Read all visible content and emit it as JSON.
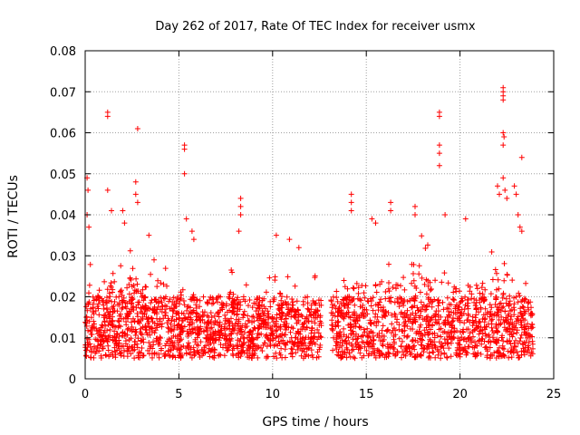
{
  "chart_data": {
    "type": "scatter",
    "title": "Day 262 of 2017, Rate Of TEC Index for receiver usmx",
    "xlabel": "GPS time / hours",
    "ylabel": "ROTI / TECUs",
    "xlim": [
      0,
      25
    ],
    "ylim": [
      0,
      0.08
    ],
    "x_ticks": [
      "0",
      "5",
      "10",
      "15",
      "20",
      "25"
    ],
    "y_ticks": [
      "0",
      "0.01",
      "0.02",
      "0.03",
      "0.04",
      "0.05",
      "0.06",
      "0.07",
      "0.08"
    ],
    "grid": true,
    "marker": "+",
    "series": [
      {
        "color": "#ff0000",
        "data_gap_hours": [
          12.6,
          13.1
        ],
        "baseline_band": [
          0.005,
          0.02
        ],
        "envelope": [
          {
            "x": 0.0,
            "max": 0.03
          },
          {
            "x": 0.5,
            "max": 0.027
          },
          {
            "x": 1.0,
            "max": 0.028
          },
          {
            "x": 1.5,
            "max": 0.03
          },
          {
            "x": 2.0,
            "max": 0.03
          },
          {
            "x": 2.5,
            "max": 0.032
          },
          {
            "x": 3.0,
            "max": 0.027
          },
          {
            "x": 3.5,
            "max": 0.033
          },
          {
            "x": 4.0,
            "max": 0.03
          },
          {
            "x": 4.5,
            "max": 0.025
          },
          {
            "x": 5.0,
            "max": 0.026
          },
          {
            "x": 5.5,
            "max": 0.03
          },
          {
            "x": 6.0,
            "max": 0.022
          },
          {
            "x": 6.5,
            "max": 0.02
          },
          {
            "x": 7.0,
            "max": 0.02
          },
          {
            "x": 7.5,
            "max": 0.025
          },
          {
            "x": 8.0,
            "max": 0.028
          },
          {
            "x": 8.5,
            "max": 0.025
          },
          {
            "x": 9.0,
            "max": 0.02
          },
          {
            "x": 9.5,
            "max": 0.026
          },
          {
            "x": 10.0,
            "max": 0.025
          },
          {
            "x": 10.5,
            "max": 0.027
          },
          {
            "x": 11.0,
            "max": 0.025
          },
          {
            "x": 11.5,
            "max": 0.02
          },
          {
            "x": 12.0,
            "max": 0.022
          },
          {
            "x": 12.5,
            "max": 0.028
          },
          {
            "x": 13.1,
            "max": 0.026
          },
          {
            "x": 13.5,
            "max": 0.03
          },
          {
            "x": 14.0,
            "max": 0.028
          },
          {
            "x": 14.5,
            "max": 0.03
          },
          {
            "x": 15.0,
            "max": 0.028
          },
          {
            "x": 15.5,
            "max": 0.031
          },
          {
            "x": 16.0,
            "max": 0.03
          },
          {
            "x": 16.5,
            "max": 0.03
          },
          {
            "x": 17.0,
            "max": 0.032
          },
          {
            "x": 17.5,
            "max": 0.034
          },
          {
            "x": 18.0,
            "max": 0.035
          },
          {
            "x": 18.5,
            "max": 0.032
          },
          {
            "x": 19.0,
            "max": 0.028
          },
          {
            "x": 19.5,
            "max": 0.03
          },
          {
            "x": 20.0,
            "max": 0.028
          },
          {
            "x": 20.5,
            "max": 0.027
          },
          {
            "x": 21.0,
            "max": 0.03
          },
          {
            "x": 21.5,
            "max": 0.032
          },
          {
            "x": 22.0,
            "max": 0.038
          },
          {
            "x": 22.5,
            "max": 0.035
          },
          {
            "x": 23.0,
            "max": 0.03
          },
          {
            "x": 23.5,
            "max": 0.025
          },
          {
            "x": 23.9,
            "max": 0.022
          }
        ],
        "outliers": [
          {
            "x": 0.1,
            "y": 0.049
          },
          {
            "x": 0.15,
            "y": 0.046
          },
          {
            "x": 0.1,
            "y": 0.04
          },
          {
            "x": 0.2,
            "y": 0.037
          },
          {
            "x": 1.2,
            "y": 0.065
          },
          {
            "x": 1.2,
            "y": 0.064
          },
          {
            "x": 1.2,
            "y": 0.046
          },
          {
            "x": 1.4,
            "y": 0.041
          },
          {
            "x": 2.0,
            "y": 0.041
          },
          {
            "x": 2.1,
            "y": 0.038
          },
          {
            "x": 2.7,
            "y": 0.048
          },
          {
            "x": 2.7,
            "y": 0.045
          },
          {
            "x": 2.8,
            "y": 0.061
          },
          {
            "x": 2.8,
            "y": 0.043
          },
          {
            "x": 3.4,
            "y": 0.035
          },
          {
            "x": 5.3,
            "y": 0.057
          },
          {
            "x": 5.3,
            "y": 0.056
          },
          {
            "x": 5.3,
            "y": 0.05
          },
          {
            "x": 5.4,
            "y": 0.039
          },
          {
            "x": 5.7,
            "y": 0.036
          },
          {
            "x": 5.8,
            "y": 0.034
          },
          {
            "x": 8.3,
            "y": 0.044
          },
          {
            "x": 8.3,
            "y": 0.042
          },
          {
            "x": 8.3,
            "y": 0.04
          },
          {
            "x": 8.2,
            "y": 0.036
          },
          {
            "x": 10.2,
            "y": 0.035
          },
          {
            "x": 10.9,
            "y": 0.034
          },
          {
            "x": 11.4,
            "y": 0.032
          },
          {
            "x": 14.2,
            "y": 0.045
          },
          {
            "x": 14.2,
            "y": 0.043
          },
          {
            "x": 14.2,
            "y": 0.041
          },
          {
            "x": 15.3,
            "y": 0.039
          },
          {
            "x": 15.5,
            "y": 0.038
          },
          {
            "x": 16.3,
            "y": 0.043
          },
          {
            "x": 16.3,
            "y": 0.041
          },
          {
            "x": 17.6,
            "y": 0.04
          },
          {
            "x": 17.6,
            "y": 0.042
          },
          {
            "x": 18.9,
            "y": 0.065
          },
          {
            "x": 18.9,
            "y": 0.064
          },
          {
            "x": 18.9,
            "y": 0.057
          },
          {
            "x": 18.9,
            "y": 0.055
          },
          {
            "x": 18.9,
            "y": 0.052
          },
          {
            "x": 19.2,
            "y": 0.04
          },
          {
            "x": 20.3,
            "y": 0.039
          },
          {
            "x": 22.0,
            "y": 0.047
          },
          {
            "x": 22.1,
            "y": 0.045
          },
          {
            "x": 22.3,
            "y": 0.07
          },
          {
            "x": 22.3,
            "y": 0.071
          },
          {
            "x": 22.3,
            "y": 0.069
          },
          {
            "x": 22.3,
            "y": 0.068
          },
          {
            "x": 22.3,
            "y": 0.06
          },
          {
            "x": 22.35,
            "y": 0.059
          },
          {
            "x": 22.3,
            "y": 0.057
          },
          {
            "x": 22.3,
            "y": 0.049
          },
          {
            "x": 22.4,
            "y": 0.046
          },
          {
            "x": 22.5,
            "y": 0.044
          },
          {
            "x": 22.9,
            "y": 0.047
          },
          {
            "x": 23.0,
            "y": 0.045
          },
          {
            "x": 23.1,
            "y": 0.04
          },
          {
            "x": 23.2,
            "y": 0.037
          },
          {
            "x": 23.3,
            "y": 0.054
          },
          {
            "x": 23.3,
            "y": 0.036
          }
        ]
      }
    ]
  }
}
